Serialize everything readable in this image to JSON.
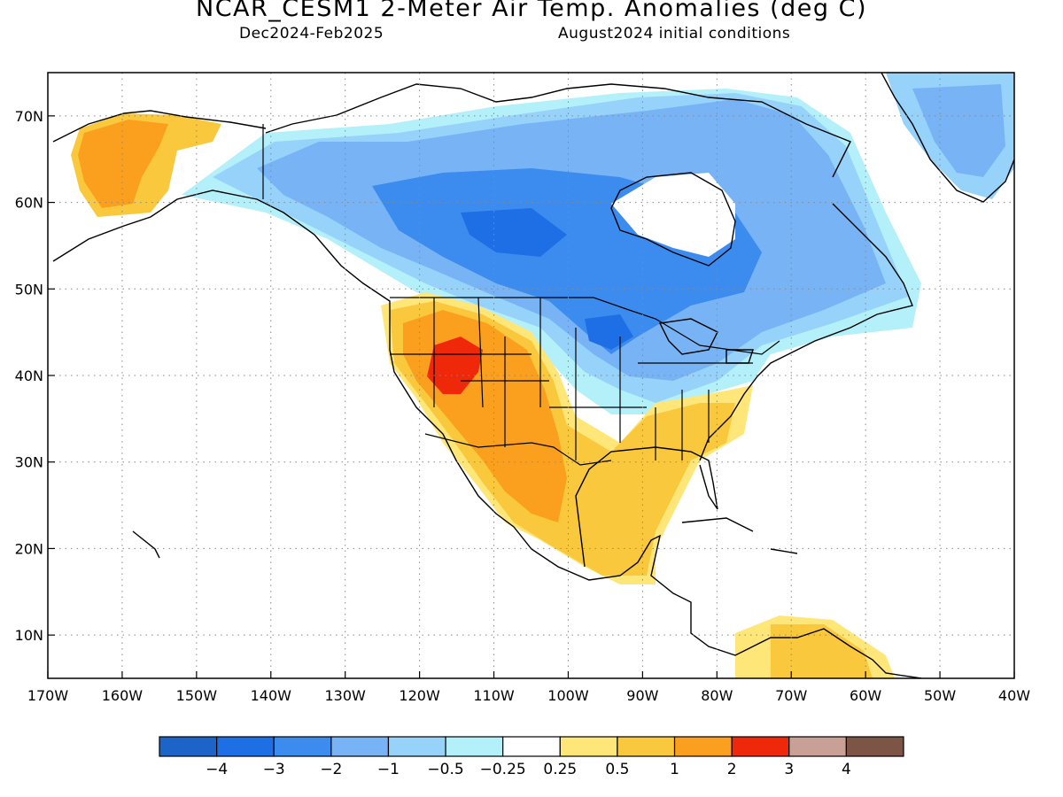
{
  "header": {
    "title": "NCAR_CESM1 2-Meter Air Temp. Anomalies (deg C)",
    "period": "Dec2024-Feb2025",
    "init": "August2024 initial conditions"
  },
  "map": {
    "lon_range": [
      -170,
      -40
    ],
    "lat_range": [
      5,
      75
    ],
    "lon_ticks": [
      {
        "lon": -170,
        "label": "170W"
      },
      {
        "lon": -160,
        "label": "160W"
      },
      {
        "lon": -150,
        "label": "150W"
      },
      {
        "lon": -140,
        "label": "140W"
      },
      {
        "lon": -130,
        "label": "130W"
      },
      {
        "lon": -120,
        "label": "120W"
      },
      {
        "lon": -110,
        "label": "110W"
      },
      {
        "lon": -100,
        "label": "100W"
      },
      {
        "lon": -90,
        "label": "90W"
      },
      {
        "lon": -80,
        "label": "80W"
      },
      {
        "lon": -70,
        "label": "70W"
      },
      {
        "lon": -60,
        "label": "60W"
      },
      {
        "lon": -50,
        "label": "50W"
      },
      {
        "lon": -40,
        "label": "40W"
      }
    ],
    "lat_ticks": [
      {
        "lat": 10,
        "label": "10N"
      },
      {
        "lat": 20,
        "label": "20N"
      },
      {
        "lat": 30,
        "label": "30N"
      },
      {
        "lat": 40,
        "label": "40N"
      },
      {
        "lat": 50,
        "label": "50N"
      },
      {
        "lat": 60,
        "label": "60N"
      },
      {
        "lat": 70,
        "label": "70N"
      }
    ],
    "grid": "dotted"
  },
  "colorbar": {
    "colors": [
      "#1c64c8",
      "#1e6ee6",
      "#3c8cf0",
      "#78b4f5",
      "#96d2fa",
      "#b4f0fa",
      "#ffffff",
      "#ffe678",
      "#fac83c",
      "#faa01e",
      "#f0280a",
      "#c8a096",
      "#7d5546"
    ],
    "labels": [
      "-4",
      "-3",
      "-2",
      "-1",
      "-0.5",
      "-0.25",
      "0.25",
      "0.5",
      "1",
      "2",
      "3",
      "4"
    ]
  }
}
